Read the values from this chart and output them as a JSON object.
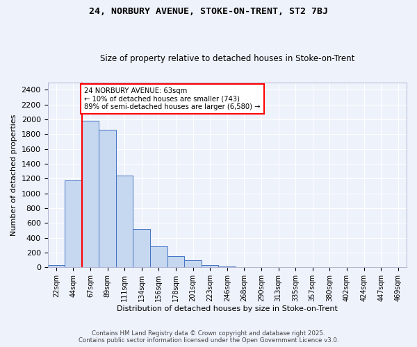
{
  "title_line1": "24, NORBURY AVENUE, STOKE-ON-TRENT, ST2 7BJ",
  "title_line2": "Size of property relative to detached houses in Stoke-on-Trent",
  "xlabel": "Distribution of detached houses by size in Stoke-on-Trent",
  "ylabel": "Number of detached properties",
  "bins": [
    "22sqm",
    "44sqm",
    "67sqm",
    "89sqm",
    "111sqm",
    "134sqm",
    "156sqm",
    "178sqm",
    "201sqm",
    "223sqm",
    "246sqm",
    "268sqm",
    "290sqm",
    "313sqm",
    "335sqm",
    "357sqm",
    "380sqm",
    "402sqm",
    "424sqm",
    "447sqm",
    "469sqm"
  ],
  "values": [
    30,
    1170,
    1980,
    1860,
    1240,
    520,
    280,
    150,
    95,
    30,
    10,
    5,
    3,
    2,
    1,
    1,
    1,
    0,
    0,
    0,
    0
  ],
  "bar_color": "#c5d8f0",
  "bar_edge_color": "#4472c4",
  "vline_color": "red",
  "vline_pos": 1.5,
  "annotation_text": "24 NORBURY AVENUE: 63sqm\n← 10% of detached houses are smaller (743)\n89% of semi-detached houses are larger (6,580) →",
  "annotation_box_color": "white",
  "annotation_box_edge_color": "red",
  "ylim": [
    0,
    2500
  ],
  "yticks": [
    0,
    200,
    400,
    600,
    800,
    1000,
    1200,
    1400,
    1600,
    1800,
    2000,
    2200,
    2400
  ],
  "background_color": "#eef2fb",
  "grid_color": "white",
  "footer_line1": "Contains HM Land Registry data © Crown copyright and database right 2025.",
  "footer_line2": "Contains public sector information licensed under the Open Government Licence v3.0."
}
